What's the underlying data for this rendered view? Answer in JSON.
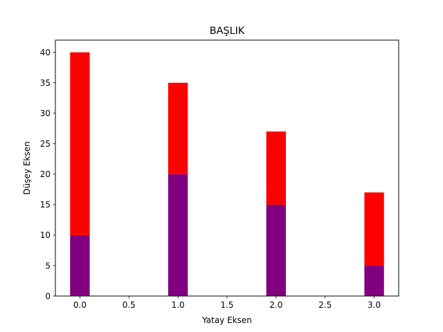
{
  "chart_data": {
    "type": "bar",
    "stacked": true,
    "title": "BAŞLIK",
    "xlabel": "Yatay Eksen",
    "ylabel": "Düşey Eksen",
    "x": [
      0,
      1,
      2,
      3
    ],
    "series": [
      {
        "values": [
          10,
          20,
          15,
          5
        ],
        "color": "#800080"
      },
      {
        "values": [
          30,
          15,
          12,
          12
        ],
        "color": "#ff0000"
      }
    ],
    "bar_width": 0.2,
    "xlim": [
      -0.25,
      3.25
    ],
    "ylim": [
      0,
      42
    ],
    "xticks": [
      0.0,
      0.5,
      1.0,
      1.5,
      2.0,
      2.5,
      3.0
    ],
    "xtick_labels": [
      "0.0",
      "0.5",
      "1.0",
      "1.5",
      "2.0",
      "2.5",
      "3.0"
    ],
    "yticks": [
      0,
      5,
      10,
      15,
      20,
      25,
      30,
      35,
      40
    ],
    "ytick_labels": [
      "0",
      "5",
      "10",
      "15",
      "20",
      "25",
      "30",
      "35",
      "40"
    ],
    "grid": false,
    "legend": false
  }
}
